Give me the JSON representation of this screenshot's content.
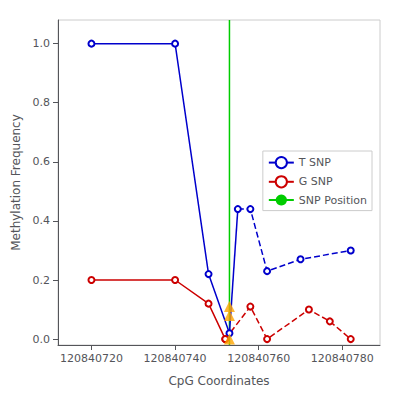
{
  "chart_data": {
    "type": "line",
    "xlabel": "CpG Coordinates",
    "ylabel": "Methylation Frequency",
    "series": [
      {
        "name": "T SNP",
        "color": "#0000cc",
        "line_style": "solid",
        "marker": "circle",
        "x": [
          120840720,
          120840740,
          120840748,
          120840753
        ],
        "values": [
          1.0,
          1.0,
          0.22,
          0.02
        ]
      },
      {
        "name": "T SNP",
        "color": "#0000cc",
        "line_style": "dashed",
        "marker": "circle",
        "x": [
          120840755,
          120840758,
          120840762,
          120840770,
          120840782
        ],
        "values": [
          0.44,
          0.44,
          0.23,
          0.27,
          0.3
        ]
      },
      {
        "name": "T SNP",
        "color": "#0000cc",
        "line_style": "solid",
        "marker": "none",
        "x": [
          120840753,
          120840755
        ],
        "values": [
          0.02,
          0.44
        ]
      },
      {
        "name": "G SNP",
        "color": "#cc0000",
        "line_style": "solid",
        "marker": "circle",
        "x": [
          120840720,
          120840740,
          120840748,
          120840752
        ],
        "values": [
          0.2,
          0.2,
          0.12,
          0.0
        ]
      },
      {
        "name": "G SNP",
        "color": "#cc0000",
        "line_style": "dashed",
        "marker": "circle",
        "x": [
          120840752,
          120840758,
          120840762,
          120840772,
          120840777,
          120840782
        ],
        "values": [
          0.0,
          0.11,
          0.0,
          0.1,
          0.06,
          0.0
        ]
      },
      {
        "type": "scatter",
        "color": "#FFA500",
        "marker": "triangle",
        "x": [
          120840753,
          120840753,
          120840753
        ],
        "values": [
          0.0,
          0.08,
          0.11
        ]
      },
      {
        "name": "SNP Position",
        "type": "vline",
        "color": "#00cc00",
        "line_style": "solid",
        "x": 120840753
      }
    ],
    "xlim": [
      120840712,
      120840789
    ],
    "ylim": [
      -0.02,
      1.08
    ],
    "xticks": [
      120840720,
      120840740,
      120840760,
      120840780
    ],
    "yticks": [
      {
        "value": 0.0,
        "label": "0.0"
      },
      0.2,
      0.4,
      0.6,
      0.8,
      {
        "value": 1.0,
        "label": "1.0"
      }
    ],
    "grid": false,
    "legend": "center right"
  }
}
